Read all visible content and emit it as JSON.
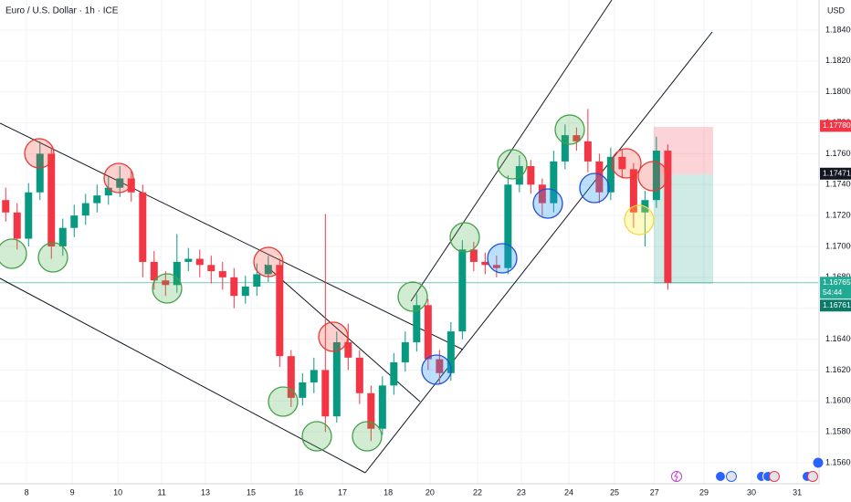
{
  "chart_data": {
    "type": "candlestick",
    "title": "Euro / U.S. Dollar · 1h · ICE",
    "y_axis_label": "USD",
    "colors": {
      "up": "#089981",
      "down": "#f23645"
    },
    "grid": true,
    "xlim": [
      0,
      430
    ],
    "ylim": [
      1.15464,
      1.18595
    ],
    "xticks": [
      {
        "value": 14,
        "label": "8"
      },
      {
        "value": 38,
        "label": "9"
      },
      {
        "value": 62,
        "label": "10"
      },
      {
        "value": 85,
        "label": "11"
      },
      {
        "value": 108,
        "label": "13"
      },
      {
        "value": 132,
        "label": "15"
      },
      {
        "value": 157,
        "label": "16"
      },
      {
        "value": 180,
        "label": "17"
      },
      {
        "value": 204,
        "label": "18"
      },
      {
        "value": 226,
        "label": "20"
      },
      {
        "value": 251,
        "label": "22"
      },
      {
        "value": 274,
        "label": "23"
      },
      {
        "value": 299,
        "label": "24"
      },
      {
        "value": 323,
        "label": "25"
      },
      {
        "value": 344,
        "label": "27"
      },
      {
        "value": 370,
        "label": "29"
      },
      {
        "value": 395,
        "label": "30"
      },
      {
        "value": 419,
        "label": "31"
      }
    ],
    "yticks": [
      {
        "value": 1.184,
        "label": "1.18400"
      },
      {
        "value": 1.182,
        "label": "1.18200"
      },
      {
        "value": 1.18,
        "label": "1.18000"
      },
      {
        "value": 1.178,
        "label": "1.17800"
      },
      {
        "value": 1.176,
        "label": "1.17600"
      },
      {
        "value": 1.174,
        "label": "1.17400"
      },
      {
        "value": 1.172,
        "label": "1.17200"
      },
      {
        "value": 1.17,
        "label": "1.17000"
      },
      {
        "value": 1.168,
        "label": "1.16800"
      },
      {
        "value": 1.166,
        "label": "1.16600"
      },
      {
        "value": 1.164,
        "label": "1.16400"
      },
      {
        "value": 1.162,
        "label": "1.16200"
      },
      {
        "value": 1.16,
        "label": "1.16000"
      },
      {
        "value": 1.158,
        "label": "1.15800"
      },
      {
        "value": 1.156,
        "label": "1.15600"
      }
    ],
    "price_labels": [
      {
        "value": 1.1778,
        "label": "1.17780",
        "color": "#f23645"
      },
      {
        "value": 1.17471,
        "label": "1.17471",
        "color": "#131722"
      },
      {
        "value": 1.16765,
        "label": "1.16765",
        "color": "#22ab94",
        "timer": "54:44"
      },
      {
        "value": 1.16761,
        "label": "1.16761",
        "color": "#0b7a68"
      }
    ],
    "x": [
      3,
      9,
      15,
      21,
      27,
      33,
      39,
      45,
      51,
      57,
      63,
      69,
      75,
      81,
      87,
      93,
      99,
      105,
      111,
      117,
      123,
      129,
      135,
      141,
      147,
      153,
      159,
      165,
      171,
      177,
      183,
      189,
      195,
      201,
      207,
      213,
      219,
      225,
      231,
      237,
      243,
      249,
      255,
      261,
      267,
      273,
      279,
      285,
      291,
      297,
      303,
      309,
      315,
      321,
      327,
      333,
      339,
      345,
      351
    ],
    "open": [
      1.173,
      1.1722,
      1.1705,
      1.1735,
      1.176,
      1.17,
      1.1712,
      1.172,
      1.1728,
      1.1733,
      1.1738,
      1.1744,
      1.1735,
      1.169,
      1.1678,
      1.1675,
      1.169,
      1.1692,
      1.1688,
      1.1684,
      1.168,
      1.1668,
      1.1674,
      1.1682,
      1.1688,
      1.1629,
      1.1602,
      1.1612,
      1.162,
      1.159,
      1.1638,
      1.1628,
      1.1605,
      1.1582,
      1.161,
      1.1625,
      1.1638,
      1.1662,
      1.1627,
      1.1618,
      1.1645,
      1.1698,
      1.169,
      1.1688,
      1.1686,
      1.174,
      1.1752,
      1.174,
      1.1728,
      1.1755,
      1.1772,
      1.1768,
      1.1755,
      1.1735,
      1.1758,
      1.175,
      1.1722,
      1.173,
      1.1762
    ],
    "high": [
      1.1738,
      1.1728,
      1.1741,
      1.1768,
      1.1764,
      1.1718,
      1.1727,
      1.1734,
      1.174,
      1.1745,
      1.1752,
      1.1749,
      1.174,
      1.1697,
      1.1684,
      1.1708,
      1.1699,
      1.1698,
      1.1694,
      1.169,
      1.1686,
      1.1681,
      1.1689,
      1.1694,
      1.1692,
      1.1633,
      1.1618,
      1.1628,
      1.1721,
      1.1645,
      1.165,
      1.1633,
      1.161,
      1.1616,
      1.1631,
      1.1645,
      1.1669,
      1.1666,
      1.1633,
      1.1651,
      1.1704,
      1.1703,
      1.1696,
      1.1694,
      1.1746,
      1.1759,
      1.1756,
      1.1744,
      1.1762,
      1.1779,
      1.1777,
      1.1789,
      1.176,
      1.1764,
      1.1763,
      1.1754,
      1.1736,
      1.1771,
      1.1766
    ],
    "low": [
      1.1716,
      1.1698,
      1.17,
      1.173,
      1.1692,
      1.1694,
      1.1706,
      1.1714,
      1.1722,
      1.1727,
      1.1732,
      1.1729,
      1.168,
      1.1672,
      1.1668,
      1.167,
      1.1684,
      1.168,
      1.1676,
      1.1672,
      1.166,
      1.1663,
      1.1668,
      1.1677,
      1.1622,
      1.1596,
      1.1597,
      1.1605,
      1.158,
      1.1586,
      1.162,
      1.1598,
      1.1574,
      1.1578,
      1.1604,
      1.1619,
      1.1632,
      1.162,
      1.1611,
      1.1613,
      1.164,
      1.1684,
      1.1682,
      1.168,
      1.1682,
      1.1735,
      1.1734,
      1.172,
      1.1722,
      1.175,
      1.1762,
      1.1748,
      1.1728,
      1.173,
      1.1744,
      1.1712,
      1.17,
      1.1725,
      1.1672
    ],
    "close": [
      1.1722,
      1.1705,
      1.1735,
      1.176,
      1.17,
      1.1712,
      1.172,
      1.1728,
      1.1733,
      1.1738,
      1.1744,
      1.1735,
      1.169,
      1.1678,
      1.1675,
      1.169,
      1.1692,
      1.1688,
      1.1684,
      1.168,
      1.1668,
      1.1674,
      1.1682,
      1.1688,
      1.1629,
      1.1602,
      1.1612,
      1.162,
      1.159,
      1.1638,
      1.1628,
      1.1605,
      1.1582,
      1.161,
      1.1625,
      1.1638,
      1.1662,
      1.1627,
      1.1618,
      1.1645,
      1.1698,
      1.169,
      1.1688,
      1.1686,
      1.174,
      1.1752,
      1.174,
      1.1728,
      1.1755,
      1.1772,
      1.1768,
      1.1755,
      1.1735,
      1.1758,
      1.175,
      1.1722,
      1.173,
      1.1762,
      1.16765
    ]
  }
}
